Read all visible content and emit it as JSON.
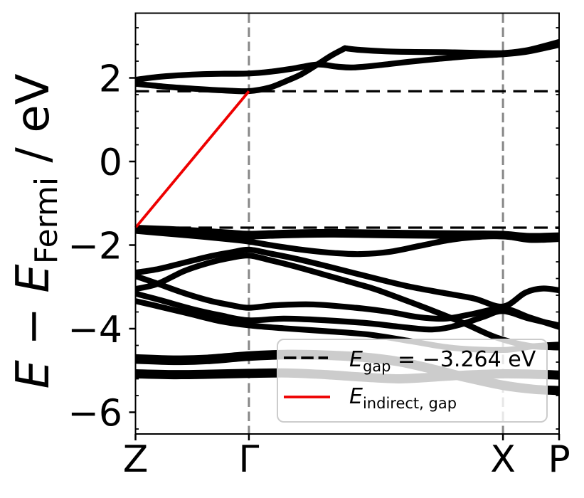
{
  "figure": {
    "kind": "band-structure-plot",
    "background": "#ffffff"
  },
  "colors": {
    "band": "#000000",
    "gap_dash": "#000000",
    "kpoint_dash": "#878787",
    "indirect_gap": "#ee0000",
    "axis": "#000000",
    "legend_border": "#cccccc",
    "legend_fill_alpha": 0.8
  },
  "chart_data": {
    "type": "line",
    "title": "",
    "ylabel": {
      "main1": "E",
      "minus": " − ",
      "main2": "E",
      "sub": "Fermi",
      "rest": " / eV"
    },
    "x_axis": {
      "tick_labels": [
        "Z",
        "Γ",
        "X",
        "P"
      ],
      "tick_positions": [
        0,
        0.2677,
        0.8675,
        1.0
      ]
    },
    "y_axis": {
      "tick_labels": [
        "2",
        "0",
        "−2",
        "−4",
        "−6"
      ],
      "tick_values": [
        2,
        0,
        -2,
        -4,
        -6
      ],
      "range": [
        -6.519,
        3.549
      ],
      "minor_step": 0.4
    },
    "gap_lines": {
      "vbm_energy": -1.583,
      "cbm_energy": 1.681
    },
    "indirect_gap_line": {
      "from_kpoint": "Z",
      "from_energy": -1.583,
      "to_kpoint": "Γ",
      "to_energy": 1.681
    },
    "kpoint_lines": [
      0.2677,
      0.8675
    ],
    "bands": {
      "series": [
        {
          "name": "conduction-1-left",
          "points": [
            [
              0,
              1.86
            ],
            [
              0.07,
              1.79
            ],
            [
              0.14,
              1.74
            ],
            [
              0.21,
              1.7
            ],
            [
              0.2677,
              1.684
            ],
            [
              0.317,
              1.77
            ],
            [
              0.357,
              1.93
            ],
            [
              0.392,
              2.09
            ],
            [
              0.429,
              2.32
            ],
            [
              0.463,
              2.54
            ],
            [
              0.4946,
              2.71
            ]
          ]
        },
        {
          "name": "conduction-1-right",
          "points": [
            [
              0.4946,
              2.71
            ],
            [
              0.53,
              2.67
            ],
            [
              0.59,
              2.635
            ],
            [
              0.66,
              2.62
            ],
            [
              0.73,
              2.615
            ],
            [
              0.8,
              2.6
            ],
            [
              0.8675,
              2.595
            ],
            [
              0.92,
              2.655
            ],
            [
              0.96,
              2.75
            ],
            [
              1,
              2.86
            ]
          ]
        },
        {
          "name": "conduction-2",
          "points": [
            [
              0,
              1.955
            ],
            [
              0.05,
              2.02
            ],
            [
              0.1,
              2.06
            ],
            [
              0.16,
              2.09
            ],
            [
              0.21,
              2.1
            ],
            [
              0.2677,
              2.105
            ],
            [
              0.32,
              2.15
            ],
            [
              0.37,
              2.22
            ],
            [
              0.429,
              2.32
            ],
            [
              0.475,
              2.27
            ],
            [
              0.515,
              2.25
            ],
            [
              0.58,
              2.31
            ],
            [
              0.65,
              2.39
            ],
            [
              0.72,
              2.46
            ],
            [
              0.79,
              2.52
            ],
            [
              0.8675,
              2.565
            ],
            [
              0.92,
              2.62
            ],
            [
              0.96,
              2.7
            ],
            [
              1,
              2.79
            ]
          ]
        },
        {
          "name": "valence-1",
          "points": [
            [
              0,
              -1.585
            ],
            [
              0.08,
              -1.615
            ],
            [
              0.16,
              -1.66
            ],
            [
              0.22,
              -1.7
            ],
            [
              0.2677,
              -1.73
            ],
            [
              0.33,
              -1.71
            ],
            [
              0.4,
              -1.69
            ],
            [
              0.47,
              -1.685
            ],
            [
              0.55,
              -1.695
            ],
            [
              0.63,
              -1.705
            ],
            [
              0.72,
              -1.715
            ],
            [
              0.8,
              -1.72
            ],
            [
              0.8675,
              -1.73
            ],
            [
              0.93,
              -1.78
            ],
            [
              1,
              -1.765
            ]
          ]
        },
        {
          "name": "valence-1b",
          "points": [
            [
              0,
              -1.65
            ],
            [
              0.08,
              -1.68
            ],
            [
              0.16,
              -1.725
            ],
            [
              0.22,
              -1.765
            ],
            [
              0.2677,
              -1.795
            ],
            [
              0.33,
              -1.775
            ],
            [
              0.4,
              -1.755
            ],
            [
              0.47,
              -1.75
            ],
            [
              0.55,
              -1.76
            ],
            [
              0.63,
              -1.77
            ],
            [
              0.72,
              -1.78
            ],
            [
              0.8,
              -1.785
            ],
            [
              0.8675,
              -1.795
            ],
            [
              0.93,
              -1.845
            ],
            [
              1,
              -1.83
            ]
          ]
        },
        {
          "name": "valence-2",
          "points": [
            [
              0,
              -1.66
            ],
            [
              0.08,
              -1.73
            ],
            [
              0.16,
              -1.8
            ],
            [
              0.22,
              -1.86
            ],
            [
              0.2677,
              -1.915
            ],
            [
              0.33,
              -2.02
            ],
            [
              0.4,
              -2.12
            ],
            [
              0.47,
              -2.19
            ],
            [
              0.53,
              -2.215
            ],
            [
              0.6,
              -2.16
            ],
            [
              0.67,
              -2.02
            ],
            [
              0.74,
              -1.88
            ],
            [
              0.8,
              -1.81
            ],
            [
              0.8675,
              -1.785
            ],
            [
              0.93,
              -1.875
            ],
            [
              1,
              -1.855
            ]
          ]
        },
        {
          "name": "valence-3",
          "points": [
            [
              0,
              -2.66
            ],
            [
              0.055,
              -2.57
            ],
            [
              0.115,
              -2.42
            ],
            [
              0.175,
              -2.27
            ],
            [
              0.2275,
              -2.17
            ],
            [
              0.2677,
              -2.11
            ],
            [
              0.317,
              -2.2
            ],
            [
              0.38,
              -2.33
            ],
            [
              0.45,
              -2.5
            ],
            [
              0.52,
              -2.68
            ],
            [
              0.587,
              -2.85
            ],
            [
              0.65,
              -3.0
            ],
            [
              0.73,
              -3.15
            ],
            [
              0.8,
              -3.28
            ],
            [
              0.8675,
              -3.47
            ],
            [
              0.92,
              -3.14
            ],
            [
              0.96,
              -3.04
            ],
            [
              1,
              -3.08
            ]
          ]
        },
        {
          "name": "valence-4",
          "points": [
            [
              0,
              -3.05
            ],
            [
              0.0512,
              -2.93
            ],
            [
              0.115,
              -2.62
            ],
            [
              0.175,
              -2.42
            ],
            [
              0.2275,
              -2.3
            ],
            [
              0.2677,
              -2.25
            ],
            [
              0.317,
              -2.36
            ],
            [
              0.38,
              -2.52
            ],
            [
              0.45,
              -2.72
            ],
            [
              0.52,
              -2.92
            ],
            [
              0.57,
              -3.07
            ],
            [
              0.666,
              -3.43
            ],
            [
              0.7145,
              -3.62
            ],
            [
              0.78,
              -3.89
            ],
            [
              0.852,
              -4.21
            ],
            [
              0.93,
              -4.41
            ],
            [
              1,
              -4.45
            ]
          ]
        },
        {
          "name": "valence-5",
          "points": [
            [
              0,
              -2.74
            ],
            [
              0.0512,
              -2.92
            ],
            [
              0.115,
              -3.15
            ],
            [
              0.175,
              -3.33
            ],
            [
              0.2275,
              -3.44
            ],
            [
              0.2677,
              -3.5
            ],
            [
              0.33,
              -3.44
            ],
            [
              0.42,
              -3.42
            ],
            [
              0.52,
              -3.5
            ],
            [
              0.6,
              -3.6
            ],
            [
              0.666,
              -3.72
            ],
            [
              0.73,
              -3.76
            ],
            [
              0.79,
              -3.66
            ],
            [
              0.8675,
              -3.52
            ],
            [
              0.93,
              -3.73
            ],
            [
              1,
              -3.96
            ]
          ]
        },
        {
          "name": "valence-6",
          "points": [
            [
              0,
              -3.16
            ],
            [
              0.06,
              -3.32
            ],
            [
              0.13,
              -3.52
            ],
            [
              0.2,
              -3.68
            ],
            [
              0.2677,
              -3.8
            ],
            [
              0.35,
              -3.76
            ],
            [
              0.45,
              -3.8
            ],
            [
              0.55,
              -3.87
            ],
            [
              0.62,
              -3.95
            ],
            [
              0.7,
              -4.02
            ],
            [
              0.76,
              -3.92
            ],
            [
              0.82,
              -3.72
            ],
            [
              0.8675,
              -3.58
            ],
            [
              0.93,
              -3.76
            ],
            [
              1,
              -3.92
            ]
          ]
        },
        {
          "name": "valence-7",
          "points": [
            [
              0,
              -3.34
            ],
            [
              0.06,
              -3.48
            ],
            [
              0.13,
              -3.65
            ],
            [
              0.2,
              -3.82
            ],
            [
              0.2677,
              -3.92
            ],
            [
              0.35,
              -3.99
            ],
            [
              0.45,
              -4.06
            ],
            [
              0.55,
              -4.14
            ],
            [
              0.65,
              -4.3
            ],
            [
              0.75,
              -4.46
            ],
            [
              0.8675,
              -4.51
            ],
            [
              0.94,
              -4.42
            ],
            [
              1,
              -4.38
            ]
          ]
        },
        {
          "name": "valence-8a",
          "points": [
            [
              0,
              -4.68
            ],
            [
              0.09,
              -4.71
            ],
            [
              0.17,
              -4.69
            ],
            [
              0.2677,
              -4.61
            ],
            [
              0.36,
              -4.575
            ],
            [
              0.45,
              -4.59
            ],
            [
              0.54,
              -4.64
            ],
            [
              0.62,
              -4.74
            ],
            [
              0.7,
              -4.92
            ],
            [
              0.78,
              -5.12
            ],
            [
              0.8675,
              -5.31
            ],
            [
              0.94,
              -5.41
            ],
            [
              1,
              -5.44
            ]
          ]
        },
        {
          "name": "valence-8b",
          "points": [
            [
              0,
              -4.77
            ],
            [
              0.09,
              -4.8
            ],
            [
              0.17,
              -4.78
            ],
            [
              0.2677,
              -4.7
            ],
            [
              0.36,
              -4.665
            ],
            [
              0.45,
              -4.68
            ],
            [
              0.54,
              -4.73
            ],
            [
              0.62,
              -4.83
            ],
            [
              0.7,
              -5.01
            ],
            [
              0.78,
              -5.21
            ],
            [
              0.8675,
              -5.4
            ],
            [
              0.94,
              -5.49
            ],
            [
              1,
              -5.52
            ]
          ]
        },
        {
          "name": "valence-9a",
          "points": [
            [
              0,
              -5.04
            ],
            [
              0.09,
              -5.06
            ],
            [
              0.17,
              -5.05
            ],
            [
              0.2677,
              -5.03
            ],
            [
              0.36,
              -5.02
            ],
            [
              0.45,
              -5.06
            ],
            [
              0.54,
              -5.12
            ],
            [
              0.62,
              -5.16
            ],
            [
              0.7,
              -5.12
            ],
            [
              0.78,
              -5.07
            ],
            [
              0.8675,
              -5.04
            ],
            [
              0.94,
              -5.05
            ],
            [
              1,
              -5.07
            ]
          ]
        },
        {
          "name": "valence-9b",
          "points": [
            [
              0,
              -5.12
            ],
            [
              0.09,
              -5.14
            ],
            [
              0.17,
              -5.13
            ],
            [
              0.2677,
              -5.11
            ],
            [
              0.36,
              -5.1
            ],
            [
              0.45,
              -5.14
            ],
            [
              0.54,
              -5.2
            ],
            [
              0.62,
              -5.24
            ],
            [
              0.7,
              -5.2
            ],
            [
              0.78,
              -5.15
            ],
            [
              0.8675,
              -5.12
            ],
            [
              0.94,
              -5.13
            ],
            [
              1,
              -5.15
            ]
          ]
        }
      ]
    },
    "legend": {
      "items": [
        {
          "sample": "dashed-black-line",
          "label_main": "E",
          "label_sub": "gap",
          "label_rest": " = −3.264 eV"
        },
        {
          "sample": "solid-red-line",
          "label_main": "E",
          "label_sub": "indirect, gap",
          "label_rest": ""
        }
      ]
    }
  }
}
